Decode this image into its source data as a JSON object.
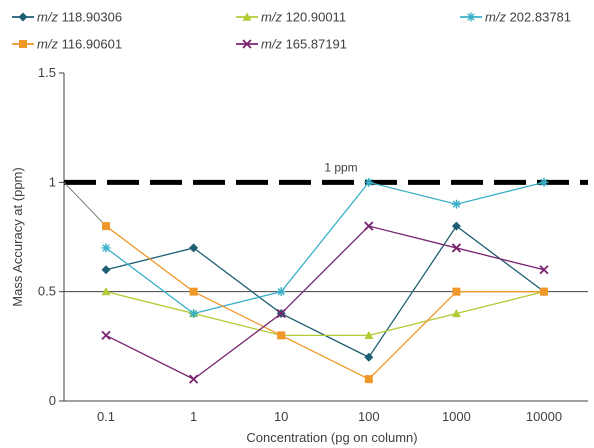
{
  "chart_data": {
    "type": "line",
    "title": "",
    "xlabel": "Concentration (pg on column)",
    "ylabel": "Mass Accuracy at  (ppm)",
    "categories": [
      "0.1",
      "1",
      "10",
      "100",
      "1000",
      "10000"
    ],
    "ylim": [
      0,
      1.5
    ],
    "yticks": [
      "0",
      "0.5",
      "1",
      "1.5"
    ],
    "grid": false,
    "legend_position": "top",
    "reference_line": {
      "value": 1,
      "label": "1 ppm",
      "color": "#000000"
    },
    "series": [
      {
        "name_prefix": "m/z",
        "name_value": "118.90306",
        "color": "#1f5f73",
        "marker": "diamond",
        "values": [
          0.6,
          0.7,
          0.4,
          0.2,
          0.8,
          0.5
        ]
      },
      {
        "name_prefix": "m/z",
        "name_value": "120.90011",
        "color": "#b5c934",
        "marker": "triangle",
        "values": [
          0.5,
          0.4,
          0.3,
          0.3,
          0.4,
          0.5
        ]
      },
      {
        "name_prefix": "m/z",
        "name_value": "202.83781",
        "color": "#3ab0c8",
        "marker": "asterisk",
        "values": [
          0.7,
          0.4,
          0.5,
          1.0,
          0.9,
          1.0
        ]
      },
      {
        "name_prefix": "m/z",
        "name_value": "116.90601",
        "color": "#f0972a",
        "marker": "square",
        "values": [
          0.8,
          0.5,
          0.3,
          0.1,
          0.5,
          0.5
        ]
      },
      {
        "name_prefix": "m/z",
        "name_value": "165.87191",
        "color": "#7a2470",
        "marker": "x",
        "values": [
          0.3,
          0.1,
          0.4,
          0.8,
          0.7,
          0.6
        ]
      }
    ]
  }
}
